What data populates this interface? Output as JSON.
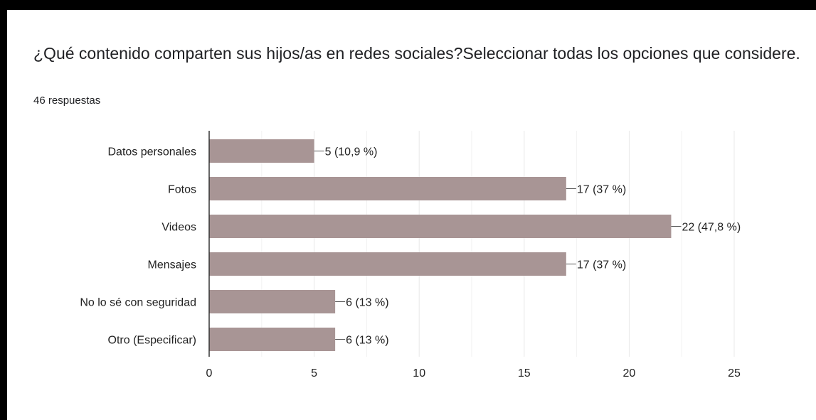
{
  "question": {
    "title": "¿Qué contenido comparten sus hijos/as en redes sociales?Seleccionar todas los opciones que considere.",
    "responses": "46 respuestas"
  },
  "chart_data": {
    "type": "bar",
    "orientation": "horizontal",
    "categories": [
      "Datos personales",
      "Fotos",
      "Videos",
      "Mensajes",
      "No lo sé con seguridad",
      "Otro (Especificar)"
    ],
    "values": [
      5,
      17,
      22,
      17,
      6,
      6
    ],
    "data_labels": [
      "5 (10,9 %)",
      "17 (37 %)",
      "22 (47,8 %)",
      "17 (37 %)",
      "6 (13 %)",
      "6 (13 %)"
    ],
    "xlim": [
      0,
      25
    ],
    "xticks": [
      0,
      5,
      10,
      15,
      20,
      25
    ],
    "grid": true,
    "bar_color": "#a89595"
  }
}
